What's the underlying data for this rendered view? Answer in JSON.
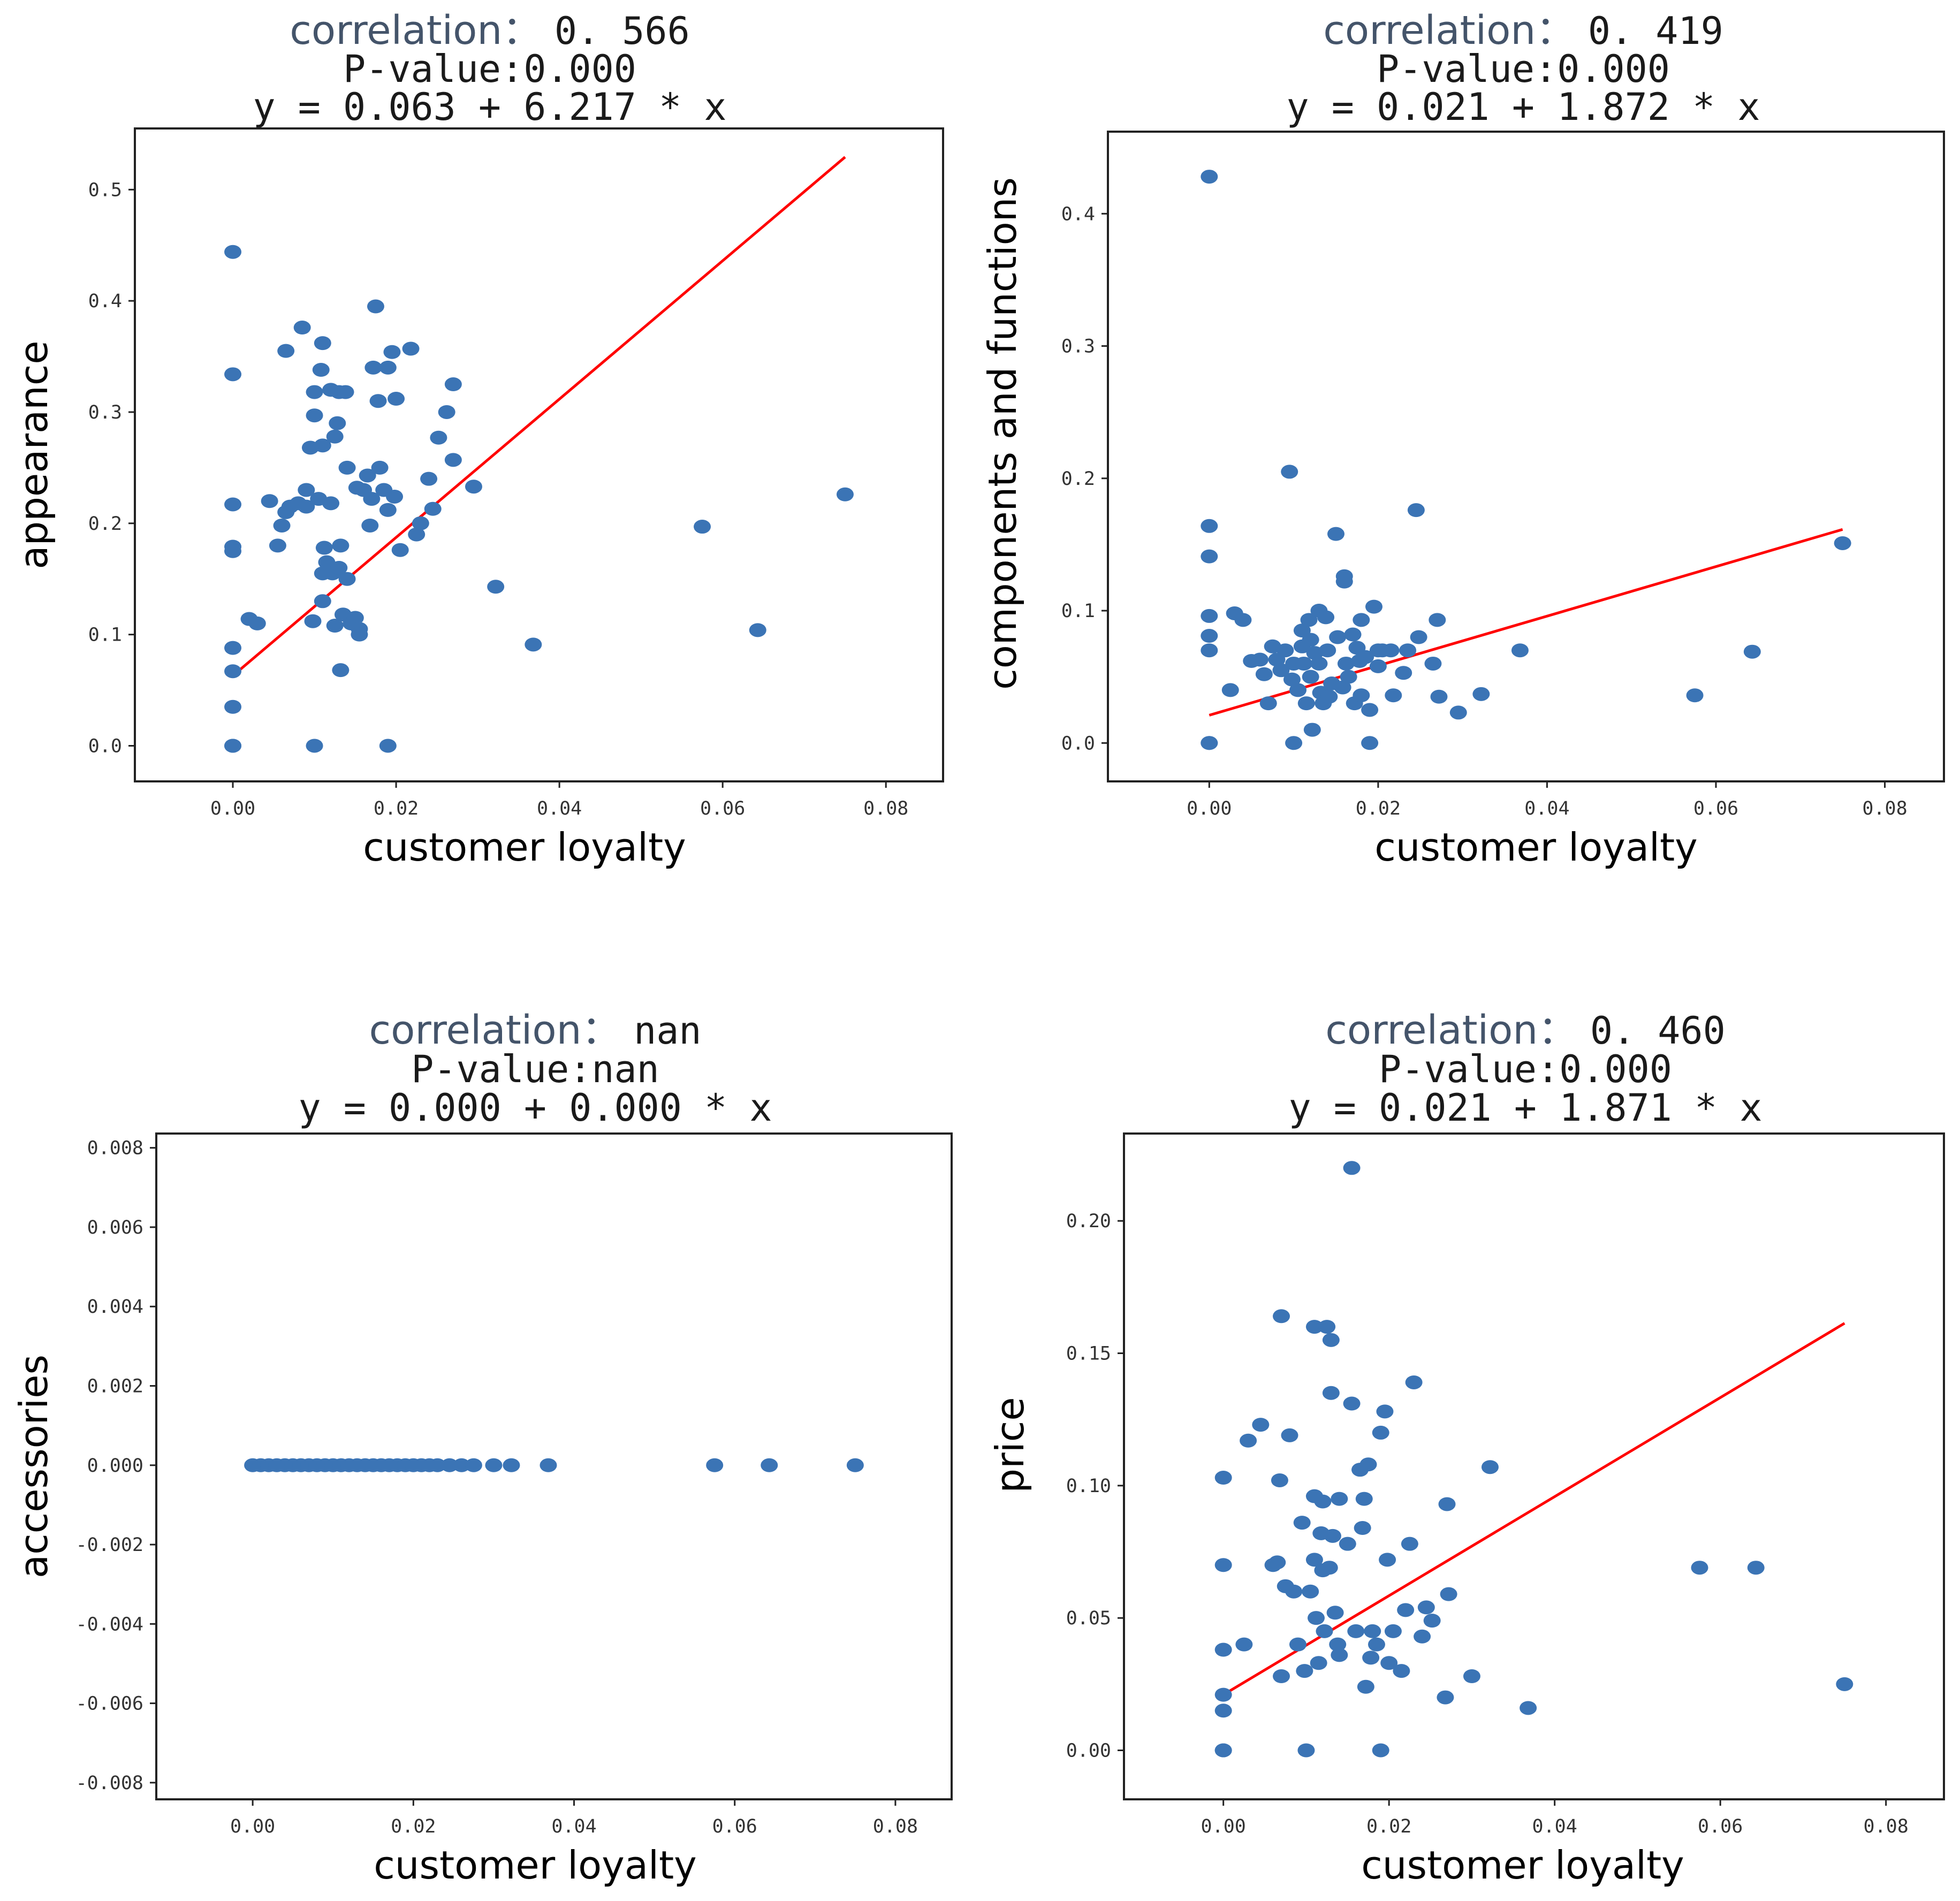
{
  "colors": {
    "point": "#3b74b5",
    "fit_line": "#ff0000",
    "title_accent": "#44546a"
  },
  "chart_data": [
    {
      "type": "scatter",
      "title_keyword": "correlation",
      "correlation_value": "0. 566",
      "p_value_text": "P-value:0.000",
      "equation_text": "y = 0.063 + 6.217 * x",
      "xlabel": "customer loyalty",
      "ylabel": "appearance",
      "xlim": [
        -0.012,
        0.087
      ],
      "ylim": [
        -0.032,
        0.555
      ],
      "xticks": [
        0,
        0.02,
        0.04,
        0.06,
        0.08
      ],
      "xtick_labels": [
        "0.00",
        "0.02",
        "0.04",
        "0.06",
        "0.08"
      ],
      "yticks": [
        0,
        0.1,
        0.2,
        0.3,
        0.4,
        0.5
      ],
      "ytick_labels": [
        "0.0",
        "0.1",
        "0.2",
        "0.3",
        "0.4",
        "0.5"
      ],
      "fit": {
        "intercept": 0.063,
        "slope": 6.217,
        "x_range": [
          0,
          0.075
        ]
      },
      "points": [
        [
          0,
          0.444
        ],
        [
          0,
          0.334
        ],
        [
          0,
          0.217
        ],
        [
          0,
          0.179
        ],
        [
          0,
          0.175
        ],
        [
          0,
          0.088
        ],
        [
          0,
          0.067
        ],
        [
          0,
          0.035
        ],
        [
          0,
          0.0
        ],
        [
          0,
          0.0
        ],
        [
          0.002,
          0.114
        ],
        [
          0.003,
          0.11
        ],
        [
          0.0045,
          0.22
        ],
        [
          0.0055,
          0.18
        ],
        [
          0.006,
          0.198
        ],
        [
          0.0065,
          0.21
        ],
        [
          0.0065,
          0.355
        ],
        [
          0.007,
          0.215
        ],
        [
          0.008,
          0.218
        ],
        [
          0.0085,
          0.376
        ],
        [
          0.009,
          0.23
        ],
        [
          0.009,
          0.215
        ],
        [
          0.0095,
          0.268
        ],
        [
          0.0098,
          0.112
        ],
        [
          0.01,
          0.318
        ],
        [
          0.01,
          0.297
        ],
        [
          0.01,
          0.0
        ],
        [
          0.0105,
          0.222
        ],
        [
          0.0108,
          0.338
        ],
        [
          0.011,
          0.362
        ],
        [
          0.011,
          0.27
        ],
        [
          0.011,
          0.155
        ],
        [
          0.011,
          0.13
        ],
        [
          0.0112,
          0.178
        ],
        [
          0.0115,
          0.165
        ],
        [
          0.0118,
          0.16
        ],
        [
          0.012,
          0.32
        ],
        [
          0.012,
          0.218
        ],
        [
          0.0122,
          0.155
        ],
        [
          0.0125,
          0.278
        ],
        [
          0.0125,
          0.108
        ],
        [
          0.0128,
          0.29
        ],
        [
          0.013,
          0.318
        ],
        [
          0.013,
          0.16
        ],
        [
          0.0132,
          0.18
        ],
        [
          0.0132,
          0.068
        ],
        [
          0.0135,
          0.118
        ],
        [
          0.0138,
          0.318
        ],
        [
          0.014,
          0.25
        ],
        [
          0.014,
          0.15
        ],
        [
          0.0145,
          0.11
        ],
        [
          0.015,
          0.115
        ],
        [
          0.0152,
          0.232
        ],
        [
          0.0155,
          0.105
        ],
        [
          0.0155,
          0.1
        ],
        [
          0.016,
          0.23
        ],
        [
          0.0165,
          0.243
        ],
        [
          0.0168,
          0.198
        ],
        [
          0.017,
          0.222
        ],
        [
          0.0172,
          0.34
        ],
        [
          0.0175,
          0.395
        ],
        [
          0.0178,
          0.31
        ],
        [
          0.018,
          0.25
        ],
        [
          0.0185,
          0.23
        ],
        [
          0.019,
          0.34
        ],
        [
          0.019,
          0.212
        ],
        [
          0.019,
          0.0
        ],
        [
          0.0195,
          0.354
        ],
        [
          0.0198,
          0.224
        ],
        [
          0.02,
          0.312
        ],
        [
          0.0205,
          0.176
        ],
        [
          0.0218,
          0.357
        ],
        [
          0.0225,
          0.19
        ],
        [
          0.023,
          0.2
        ],
        [
          0.024,
          0.24
        ],
        [
          0.0245,
          0.213
        ],
        [
          0.0252,
          0.277
        ],
        [
          0.0262,
          0.3
        ],
        [
          0.027,
          0.325
        ],
        [
          0.027,
          0.257
        ],
        [
          0.0295,
          0.233
        ],
        [
          0.0322,
          0.143
        ],
        [
          0.0368,
          0.091
        ],
        [
          0.0575,
          0.197
        ],
        [
          0.0643,
          0.104
        ],
        [
          0.075,
          0.226
        ]
      ]
    },
    {
      "type": "scatter",
      "title_keyword": "correlation",
      "correlation_value": "0. 419",
      "p_value_text": "P-value:0.000",
      "equation_text": "y = 0.021 + 1.872 * x",
      "xlabel": "customer loyalty",
      "ylabel": "components and functions",
      "xlim": [
        -0.012,
        0.087
      ],
      "ylim": [
        -0.029,
        0.462
      ],
      "xticks": [
        0,
        0.02,
        0.04,
        0.06,
        0.08
      ],
      "xtick_labels": [
        "0.00",
        "0.02",
        "0.04",
        "0.06",
        "0.08"
      ],
      "yticks": [
        0,
        0.1,
        0.2,
        0.3,
        0.4
      ],
      "ytick_labels": [
        "0.0",
        "0.1",
        "0.2",
        "0.3",
        "0.4"
      ],
      "fit": {
        "intercept": 0.021,
        "slope": 1.872,
        "x_range": [
          0,
          0.075
        ]
      },
      "points": [
        [
          0,
          0.428
        ],
        [
          0,
          0.164
        ],
        [
          0,
          0.141
        ],
        [
          0,
          0.096
        ],
        [
          0,
          0.081
        ],
        [
          0,
          0.07
        ],
        [
          0,
          0.0
        ],
        [
          0,
          0.0
        ],
        [
          0.0025,
          0.04
        ],
        [
          0.003,
          0.098
        ],
        [
          0.004,
          0.093
        ],
        [
          0.005,
          0.062
        ],
        [
          0.006,
          0.063
        ],
        [
          0.0065,
          0.052
        ],
        [
          0.007,
          0.03
        ],
        [
          0.0075,
          0.073
        ],
        [
          0.008,
          0.063
        ],
        [
          0.0085,
          0.055
        ],
        [
          0.009,
          0.07
        ],
        [
          0.0095,
          0.205
        ],
        [
          0.0098,
          0.048
        ],
        [
          0.01,
          0.06
        ],
        [
          0.01,
          0.0
        ],
        [
          0.0105,
          0.04
        ],
        [
          0.011,
          0.085
        ],
        [
          0.011,
          0.073
        ],
        [
          0.0112,
          0.06
        ],
        [
          0.0115,
          0.03
        ],
        [
          0.0118,
          0.093
        ],
        [
          0.012,
          0.078
        ],
        [
          0.012,
          0.05
        ],
        [
          0.0122,
          0.01
        ],
        [
          0.0125,
          0.068
        ],
        [
          0.013,
          0.1
        ],
        [
          0.013,
          0.06
        ],
        [
          0.0132,
          0.038
        ],
        [
          0.0135,
          0.03
        ],
        [
          0.0138,
          0.095
        ],
        [
          0.014,
          0.07
        ],
        [
          0.0142,
          0.035
        ],
        [
          0.0145,
          0.045
        ],
        [
          0.015,
          0.158
        ],
        [
          0.0152,
          0.08
        ],
        [
          0.0158,
          0.042
        ],
        [
          0.016,
          0.126
        ],
        [
          0.016,
          0.122
        ],
        [
          0.0162,
          0.06
        ],
        [
          0.0165,
          0.05
        ],
        [
          0.017,
          0.082
        ],
        [
          0.0172,
          0.03
        ],
        [
          0.0175,
          0.072
        ],
        [
          0.0178,
          0.062
        ],
        [
          0.018,
          0.093
        ],
        [
          0.018,
          0.036
        ],
        [
          0.0185,
          0.065
        ],
        [
          0.019,
          0.025
        ],
        [
          0.019,
          0.0
        ],
        [
          0.0195,
          0.103
        ],
        [
          0.02,
          0.07
        ],
        [
          0.02,
          0.058
        ],
        [
          0.0205,
          0.07
        ],
        [
          0.0215,
          0.07
        ],
        [
          0.0218,
          0.036
        ],
        [
          0.023,
          0.053
        ],
        [
          0.0235,
          0.07
        ],
        [
          0.0245,
          0.176
        ],
        [
          0.0248,
          0.08
        ],
        [
          0.0265,
          0.06
        ],
        [
          0.027,
          0.093
        ],
        [
          0.0272,
          0.035
        ],
        [
          0.0295,
          0.023
        ],
        [
          0.0322,
          0.037
        ],
        [
          0.0368,
          0.07
        ],
        [
          0.0575,
          0.036
        ],
        [
          0.0643,
          0.069
        ],
        [
          0.075,
          0.151
        ]
      ]
    },
    {
      "type": "scatter",
      "title_keyword": "correlation",
      "correlation_value": "nan",
      "p_value_text": "P-value:nan",
      "equation_text": "y = 0.000 + 0.000 * x",
      "xlabel": "customer loyalty",
      "ylabel": "accessories",
      "xlim": [
        -0.012,
        0.087
      ],
      "ylim": [
        -0.00842,
        0.00836
      ],
      "xticks": [
        0,
        0.02,
        0.04,
        0.06,
        0.08
      ],
      "xtick_labels": [
        "0.00",
        "0.02",
        "0.04",
        "0.06",
        "0.08"
      ],
      "yticks": [
        -0.008,
        -0.006,
        -0.004,
        -0.002,
        0,
        0.002,
        0.004,
        0.006,
        0.008
      ],
      "ytick_labels": [
        "-0.008",
        "-0.006",
        "-0.004",
        "-0.002",
        "0.000",
        "0.002",
        "0.004",
        "0.006",
        "0.008"
      ],
      "fit": null,
      "points": [
        [
          0,
          0
        ],
        [
          0.001,
          0
        ],
        [
          0.002,
          0
        ],
        [
          0.003,
          0
        ],
        [
          0.004,
          0
        ],
        [
          0.005,
          0
        ],
        [
          0.006,
          0
        ],
        [
          0.007,
          0
        ],
        [
          0.008,
          0
        ],
        [
          0.009,
          0
        ],
        [
          0.01,
          0
        ],
        [
          0.011,
          0
        ],
        [
          0.012,
          0
        ],
        [
          0.013,
          0
        ],
        [
          0.014,
          0
        ],
        [
          0.015,
          0
        ],
        [
          0.016,
          0
        ],
        [
          0.017,
          0
        ],
        [
          0.018,
          0
        ],
        [
          0.019,
          0
        ],
        [
          0.02,
          0
        ],
        [
          0.021,
          0
        ],
        [
          0.022,
          0
        ],
        [
          0.023,
          0
        ],
        [
          0.0245,
          0
        ],
        [
          0.026,
          0
        ],
        [
          0.0275,
          0
        ],
        [
          0.03,
          0
        ],
        [
          0.0322,
          0
        ],
        [
          0.0368,
          0
        ],
        [
          0.0575,
          0
        ],
        [
          0.0643,
          0
        ],
        [
          0.075,
          0
        ]
      ]
    },
    {
      "type": "scatter",
      "title_keyword": "correlation",
      "correlation_value": "0. 460",
      "p_value_text": "P-value:0.000",
      "equation_text": "y = 0.021 + 1.871 * x",
      "xlabel": "customer loyalty",
      "ylabel": "price",
      "xlim": [
        -0.012,
        0.087
      ],
      "ylim": [
        -0.0185,
        0.233
      ],
      "xticks": [
        0,
        0.02,
        0.04,
        0.06,
        0.08
      ],
      "xtick_labels": [
        "0.00",
        "0.02",
        "0.04",
        "0.06",
        "0.08"
      ],
      "yticks": [
        0,
        0.05,
        0.1,
        0.15,
        0.2
      ],
      "ytick_labels": [
        "0.00",
        "0.05",
        "0.10",
        "0.15",
        "0.20"
      ],
      "fit": {
        "intercept": 0.021,
        "slope": 1.871,
        "x_range": [
          0,
          0.075
        ]
      },
      "points": [
        [
          0,
          0.103
        ],
        [
          0,
          0.07
        ],
        [
          0,
          0.038
        ],
        [
          0,
          0.021
        ],
        [
          0,
          0.015
        ],
        [
          0,
          0.0
        ],
        [
          0,
          0.0
        ],
        [
          0.0025,
          0.04
        ],
        [
          0.003,
          0.117
        ],
        [
          0.0045,
          0.123
        ],
        [
          0.006,
          0.07
        ],
        [
          0.0065,
          0.071
        ],
        [
          0.0068,
          0.102
        ],
        [
          0.007,
          0.164
        ],
        [
          0.007,
          0.028
        ],
        [
          0.0075,
          0.062
        ],
        [
          0.008,
          0.119
        ],
        [
          0.0085,
          0.06
        ],
        [
          0.009,
          0.04
        ],
        [
          0.0095,
          0.086
        ],
        [
          0.0098,
          0.03
        ],
        [
          0.01,
          0.0
        ],
        [
          0.0105,
          0.06
        ],
        [
          0.011,
          0.16
        ],
        [
          0.011,
          0.096
        ],
        [
          0.011,
          0.072
        ],
        [
          0.0112,
          0.05
        ],
        [
          0.0115,
          0.033
        ],
        [
          0.0118,
          0.082
        ],
        [
          0.012,
          0.094
        ],
        [
          0.012,
          0.068
        ],
        [
          0.0122,
          0.045
        ],
        [
          0.0125,
          0.16
        ],
        [
          0.0128,
          0.069
        ],
        [
          0.013,
          0.155
        ],
        [
          0.013,
          0.135
        ],
        [
          0.0132,
          0.081
        ],
        [
          0.0135,
          0.052
        ],
        [
          0.0138,
          0.04
        ],
        [
          0.014,
          0.095
        ],
        [
          0.014,
          0.036
        ],
        [
          0.015,
          0.078
        ],
        [
          0.0155,
          0.22
        ],
        [
          0.0155,
          0.131
        ],
        [
          0.016,
          0.045
        ],
        [
          0.0165,
          0.106
        ],
        [
          0.0168,
          0.084
        ],
        [
          0.017,
          0.095
        ],
        [
          0.0172,
          0.024
        ],
        [
          0.0175,
          0.108
        ],
        [
          0.0178,
          0.035
        ],
        [
          0.018,
          0.045
        ],
        [
          0.0185,
          0.04
        ],
        [
          0.019,
          0.12
        ],
        [
          0.019,
          0.0
        ],
        [
          0.0195,
          0.128
        ],
        [
          0.0198,
          0.072
        ],
        [
          0.02,
          0.033
        ],
        [
          0.0205,
          0.045
        ],
        [
          0.0215,
          0.03
        ],
        [
          0.022,
          0.053
        ],
        [
          0.0225,
          0.078
        ],
        [
          0.023,
          0.139
        ],
        [
          0.024,
          0.043
        ],
        [
          0.0245,
          0.054
        ],
        [
          0.0252,
          0.049
        ],
        [
          0.0268,
          0.02
        ],
        [
          0.027,
          0.093
        ],
        [
          0.0272,
          0.059
        ],
        [
          0.03,
          0.028
        ],
        [
          0.0322,
          0.107
        ],
        [
          0.0368,
          0.016
        ],
        [
          0.0575,
          0.069
        ],
        [
          0.0643,
          0.069
        ],
        [
          0.075,
          0.025
        ]
      ]
    }
  ]
}
